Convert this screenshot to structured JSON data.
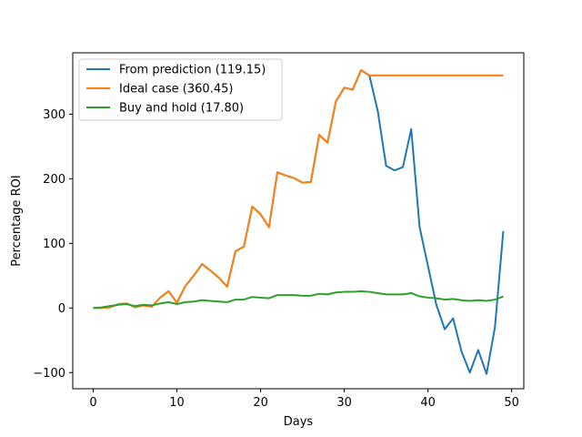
{
  "chart_data": {
    "type": "line",
    "title": "",
    "xlabel": "Days",
    "ylabel": "Percentage ROI",
    "xlim": [
      -2.45,
      51.45
    ],
    "ylim": [
      -125.0,
      395.0
    ],
    "xticks": [
      0,
      10,
      20,
      30,
      40,
      50
    ],
    "yticks": [
      -100,
      0,
      100,
      200,
      300
    ],
    "legend_position": "top-left",
    "grid": false,
    "x": [
      0,
      1,
      2,
      3,
      4,
      5,
      6,
      7,
      8,
      9,
      10,
      11,
      12,
      13,
      14,
      15,
      16,
      17,
      18,
      19,
      20,
      21,
      22,
      23,
      24,
      25,
      26,
      27,
      28,
      29,
      30,
      31,
      32,
      33,
      34,
      35,
      36,
      37,
      38,
      39,
      40,
      41,
      42,
      43,
      44,
      45,
      46,
      47,
      48,
      49
    ],
    "series": [
      {
        "name": "From prediction (119.15)",
        "color": "#1f77b4",
        "values": [
          0,
          0,
          1,
          6,
          7,
          1,
          4,
          2,
          16,
          26,
          8,
          34,
          50,
          68,
          58,
          47,
          33,
          88,
          95,
          157,
          145,
          125,
          210,
          205,
          201,
          194,
          195,
          268,
          256,
          320,
          341,
          338,
          368,
          360,
          305,
          220,
          213,
          218,
          277,
          125,
          65,
          5,
          -33,
          -16,
          -67,
          -100,
          -65,
          -102,
          -30,
          119
        ]
      },
      {
        "name": "Ideal case (360.45)",
        "color": "#ff7f0e",
        "values": [
          0,
          0,
          1,
          6,
          7,
          1,
          4,
          2,
          16,
          26,
          8,
          34,
          50,
          68,
          58,
          47,
          33,
          88,
          95,
          157,
          145,
          125,
          210,
          205,
          201,
          194,
          195,
          268,
          256,
          320,
          341,
          338,
          368,
          360,
          360,
          360,
          360,
          360,
          360,
          360,
          360,
          360,
          360,
          360,
          360,
          360,
          360,
          360,
          360,
          360
        ]
      },
      {
        "name": "Buy and hold (17.80)",
        "color": "#2ca02c",
        "values": [
          0,
          1,
          3,
          5,
          6,
          3,
          5,
          4,
          7,
          9,
          6,
          9,
          10,
          12,
          11,
          10,
          9,
          13,
          13,
          17,
          16,
          15,
          20,
          20,
          20,
          19,
          19,
          22,
          21,
          24,
          25,
          25,
          26,
          25,
          23,
          21,
          21,
          21,
          23,
          18,
          16,
          15,
          13,
          14,
          12,
          11,
          12,
          11,
          13,
          17.8
        ]
      }
    ]
  }
}
